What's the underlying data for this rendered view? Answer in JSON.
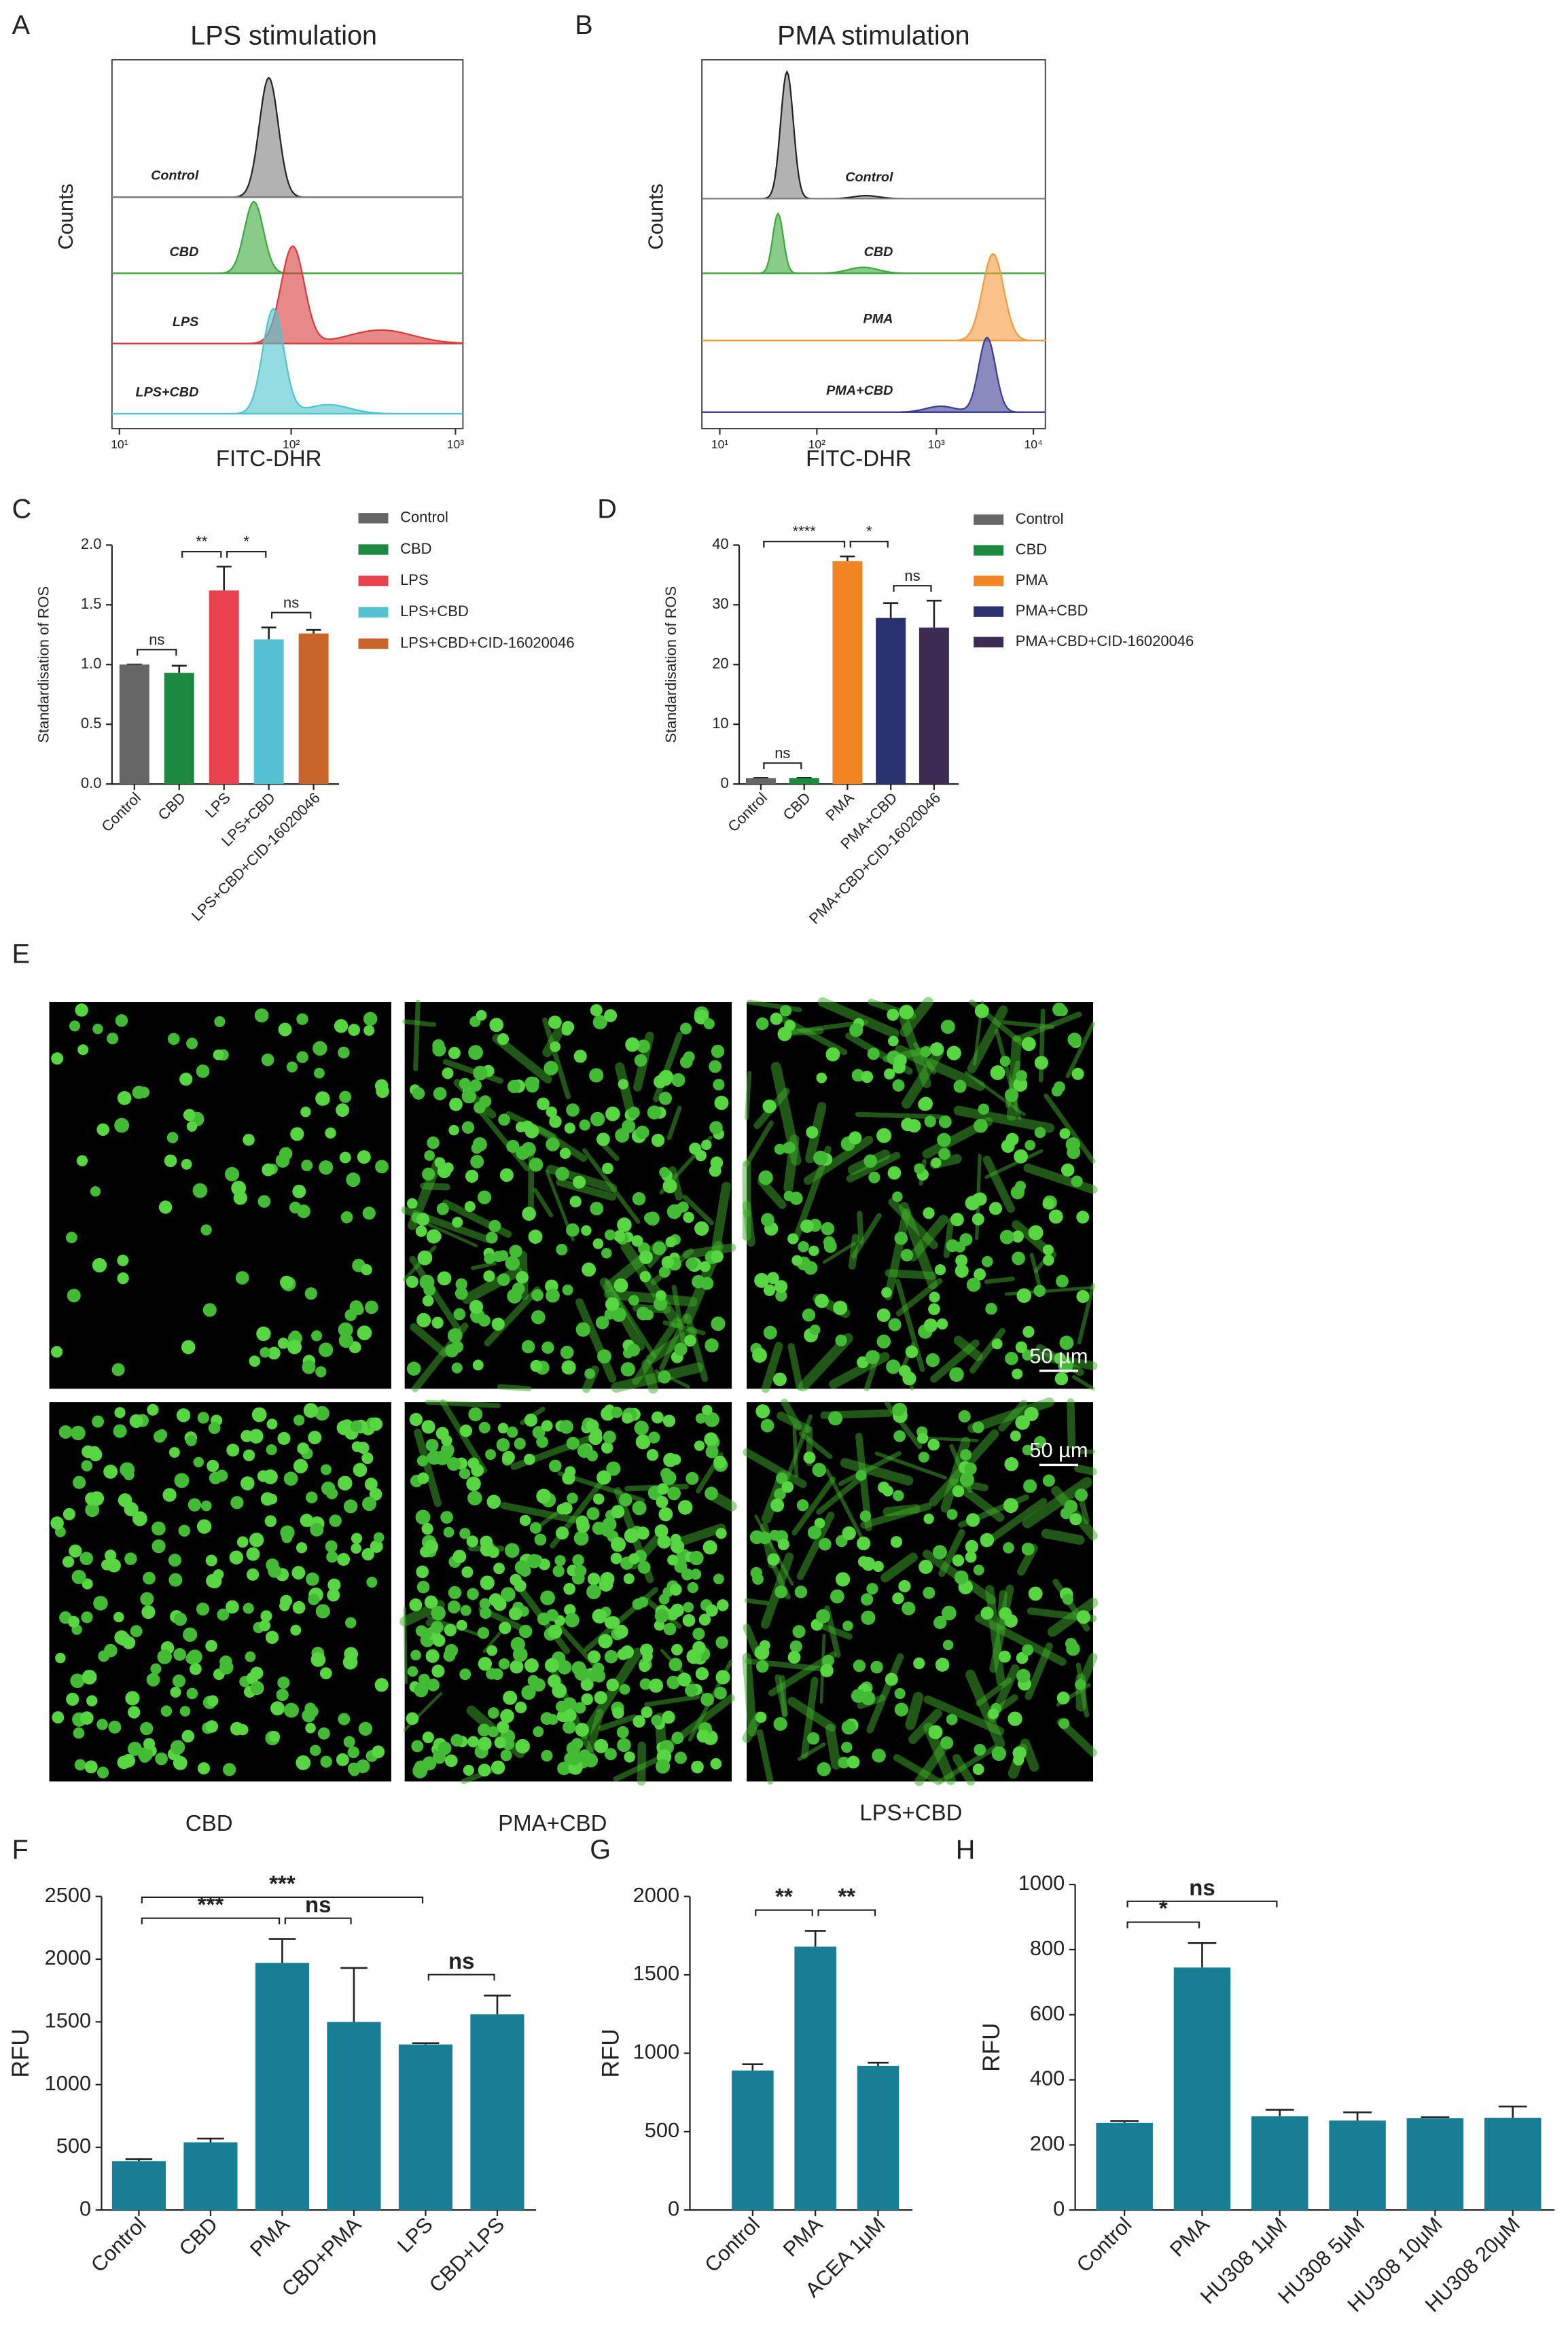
{
  "panel_labels": [
    "A",
    "B",
    "C",
    "D",
    "E",
    "F",
    "G",
    "H"
  ],
  "flow": [
    {
      "title": "LPS stimulation",
      "y_label": "Counts",
      "x_label": "FITC-DHR",
      "xticks": [
        "10¹",
        "10²",
        "10³"
      ],
      "samples": [
        {
          "name": "Control",
          "color": "#7f7f7f"
        },
        {
          "name": "CBD",
          "color": "#3aa83a"
        },
        {
          "name": "LPS",
          "color": "#d93a3a"
        },
        {
          "name": "LPS+CBD",
          "color": "#4cc3cf"
        }
      ]
    },
    {
      "title": "PMA stimulation",
      "y_label": "Counts",
      "x_label": "FITC-DHR",
      "xticks": [
        "10¹",
        "10²",
        "10³",
        "10⁴"
      ],
      "samples": [
        {
          "name": "Control",
          "color": "#7f7f7f"
        },
        {
          "name": "CBD",
          "color": "#3aa83a"
        },
        {
          "name": "PMA",
          "color": "#f39a3c"
        },
        {
          "name": "PMA+CBD",
          "color": "#3b3d95"
        }
      ]
    }
  ],
  "chart_data": [
    {
      "type": "bar",
      "y_label": "Standardisation of ROS",
      "categories": [
        "Control",
        "CBD",
        "LPS",
        "LPS+CBD",
        "LPS+CBD+CID-16020046"
      ],
      "values": [
        1.0,
        0.93,
        1.62,
        1.21,
        1.26
      ],
      "errors": [
        0,
        0.06,
        0.2,
        0.1,
        0.03
      ],
      "colors": [
        "#666666",
        "#1b8a3e",
        "#e8434c",
        "#55c1d2",
        "#c8652a"
      ],
      "ylim": [
        0,
        2
      ],
      "yticks": [
        {
          "value": 0,
          "label": "0.0"
        },
        0.5,
        {
          "value": 1,
          "label": "1.0"
        },
        1.5,
        {
          "value": 2,
          "label": "2.0"
        }
      ],
      "legend": true,
      "annotations": [
        {
          "from": 0,
          "to": 1,
          "label": "ns"
        },
        {
          "from": 3,
          "to": 4,
          "label": "ns"
        },
        {
          "from": 2,
          "to": 3,
          "label": "*"
        },
        {
          "from": 1,
          "to": 2,
          "label": "**"
        }
      ]
    },
    {
      "type": "bar",
      "y_label": "Standardisation of ROS",
      "categories": [
        "Control",
        "CBD",
        "PMA",
        "PMA+CBD",
        "PMA+CBD+CID-16020046"
      ],
      "values": [
        1,
        1,
        37.3,
        27.8,
        26.2
      ],
      "errors": [
        0,
        0,
        0.8,
        2.5,
        4.5
      ],
      "colors": [
        "#666666",
        "#1b8a3e",
        "#f28522",
        "#2a3170",
        "#3b2b55"
      ],
      "ylim": [
        0,
        40
      ],
      "yticks": [
        0,
        10,
        20,
        30,
        40
      ],
      "legend": true,
      "annotations": [
        {
          "from": 0,
          "to": 1,
          "label": "ns"
        },
        {
          "from": 3,
          "to": 4,
          "label": "ns"
        },
        {
          "from": 2,
          "to": 3,
          "label": "*"
        },
        {
          "from": 0,
          "to": 2,
          "label": "****"
        }
      ]
    },
    {
      "type": "bar",
      "y_label": "RFU",
      "categories": [
        "Control",
        "CBD",
        "PMA",
        "CBD+PMA",
        "LPS",
        "CBD+LPS"
      ],
      "values": [
        390,
        540,
        1970,
        1500,
        1320,
        1560
      ],
      "errors": [
        15,
        30,
        190,
        430,
        10,
        150
      ],
      "colors": [
        "#177e96",
        "#177e96",
        "#177e96",
        "#177e96",
        "#177e96",
        "#177e96"
      ],
      "ylim": [
        0,
        2500
      ],
      "yticks": [
        0,
        500,
        1000,
        1500,
        2000,
        2500
      ],
      "legend": false,
      "annotations": [
        {
          "from": 4,
          "to": 5,
          "label": "ns"
        },
        {
          "from": 2,
          "to": 3,
          "label": "ns"
        },
        {
          "from": 0,
          "to": 2,
          "label": "***"
        },
        {
          "from": 0,
          "to": 4,
          "label": "***"
        }
      ]
    },
    {
      "type": "bar",
      "y_label": "RFU",
      "categories": [
        "Control",
        "PMA",
        "ACEA 1μM"
      ],
      "values": [
        890,
        1680,
        920
      ],
      "errors": [
        40,
        100,
        20
      ],
      "colors": [
        "#177e96",
        "#177e96",
        "#177e96"
      ],
      "ylim": [
        0,
        2000
      ],
      "yticks": [
        0,
        500,
        1000,
        1500,
        2000
      ],
      "legend": false,
      "annotations": [
        {
          "from": 0,
          "to": 1,
          "label": "**"
        },
        {
          "from": 1,
          "to": 2,
          "label": "**"
        }
      ]
    },
    {
      "type": "bar",
      "y_label": "RFU",
      "categories": [
        "Control",
        "PMA",
        "HU308 1μM",
        "HU308 5μM",
        "HU308 10μM",
        "HU308 20μM"
      ],
      "values": [
        268,
        745,
        288,
        275,
        282,
        283
      ],
      "errors": [
        5,
        75,
        20,
        25,
        3,
        35
      ],
      "colors": [
        "#177e96",
        "#177e96",
        "#177e96",
        "#177e96",
        "#177e96",
        "#177e96"
      ],
      "ylim": [
        0,
        1000
      ],
      "yticks": [
        0,
        200,
        400,
        600,
        800,
        1000
      ],
      "legend": false,
      "annotations": [
        {
          "from": 0,
          "to": 1,
          "label": "*"
        },
        {
          "from": 0,
          "to": 2,
          "label": "ns"
        }
      ]
    }
  ],
  "images": {
    "labels": [
      "CBD",
      "PMA+CBD",
      "LPS+CBD"
    ],
    "scale_bar": "50 µm"
  }
}
